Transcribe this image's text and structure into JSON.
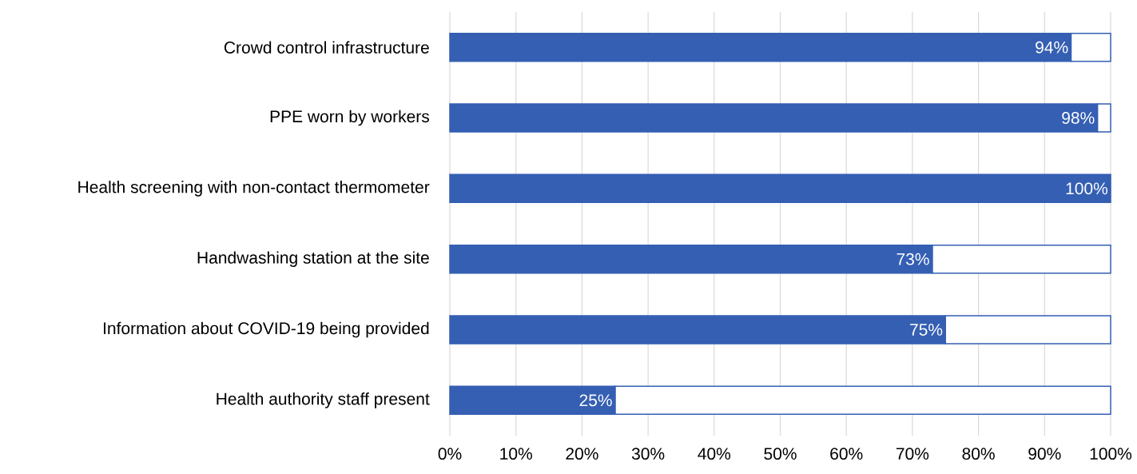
{
  "chart_data": {
    "type": "bar",
    "orientation": "horizontal",
    "stacked": true,
    "categories": [
      "Crowd  control infrastructure",
      "PPE worn by workers",
      "Health screening with non-contact thermometer",
      "Handwashing station at the site",
      "Information about COVID-19 being provided",
      "Health authority staff present"
    ],
    "series": [
      {
        "color": "#355fb3",
        "values": [
          94,
          98,
          100,
          73,
          75,
          25
        ],
        "value_labels": [
          "94%",
          "98%",
          "100%",
          "73%",
          "75%",
          "25%"
        ]
      },
      {
        "color": "#ffffff",
        "values": [
          6,
          2,
          0,
          27,
          25,
          75
        ]
      }
    ],
    "xlim": [
      0,
      100
    ],
    "xticks": [
      {
        "value": 0,
        "label": "0%"
      },
      {
        "value": 10,
        "label": "10%"
      },
      {
        "value": 20,
        "label": "20%"
      },
      {
        "value": 30,
        "label": "30%"
      },
      {
        "value": 40,
        "label": "40%"
      },
      {
        "value": 50,
        "label": "50%"
      },
      {
        "value": 60,
        "label": "60%"
      },
      {
        "value": 70,
        "label": "70%"
      },
      {
        "value": 80,
        "label": "80%"
      },
      {
        "value": 90,
        "label": "90%"
      },
      {
        "value": 100,
        "label": "100%"
      }
    ],
    "grid": "x",
    "legend": false
  }
}
